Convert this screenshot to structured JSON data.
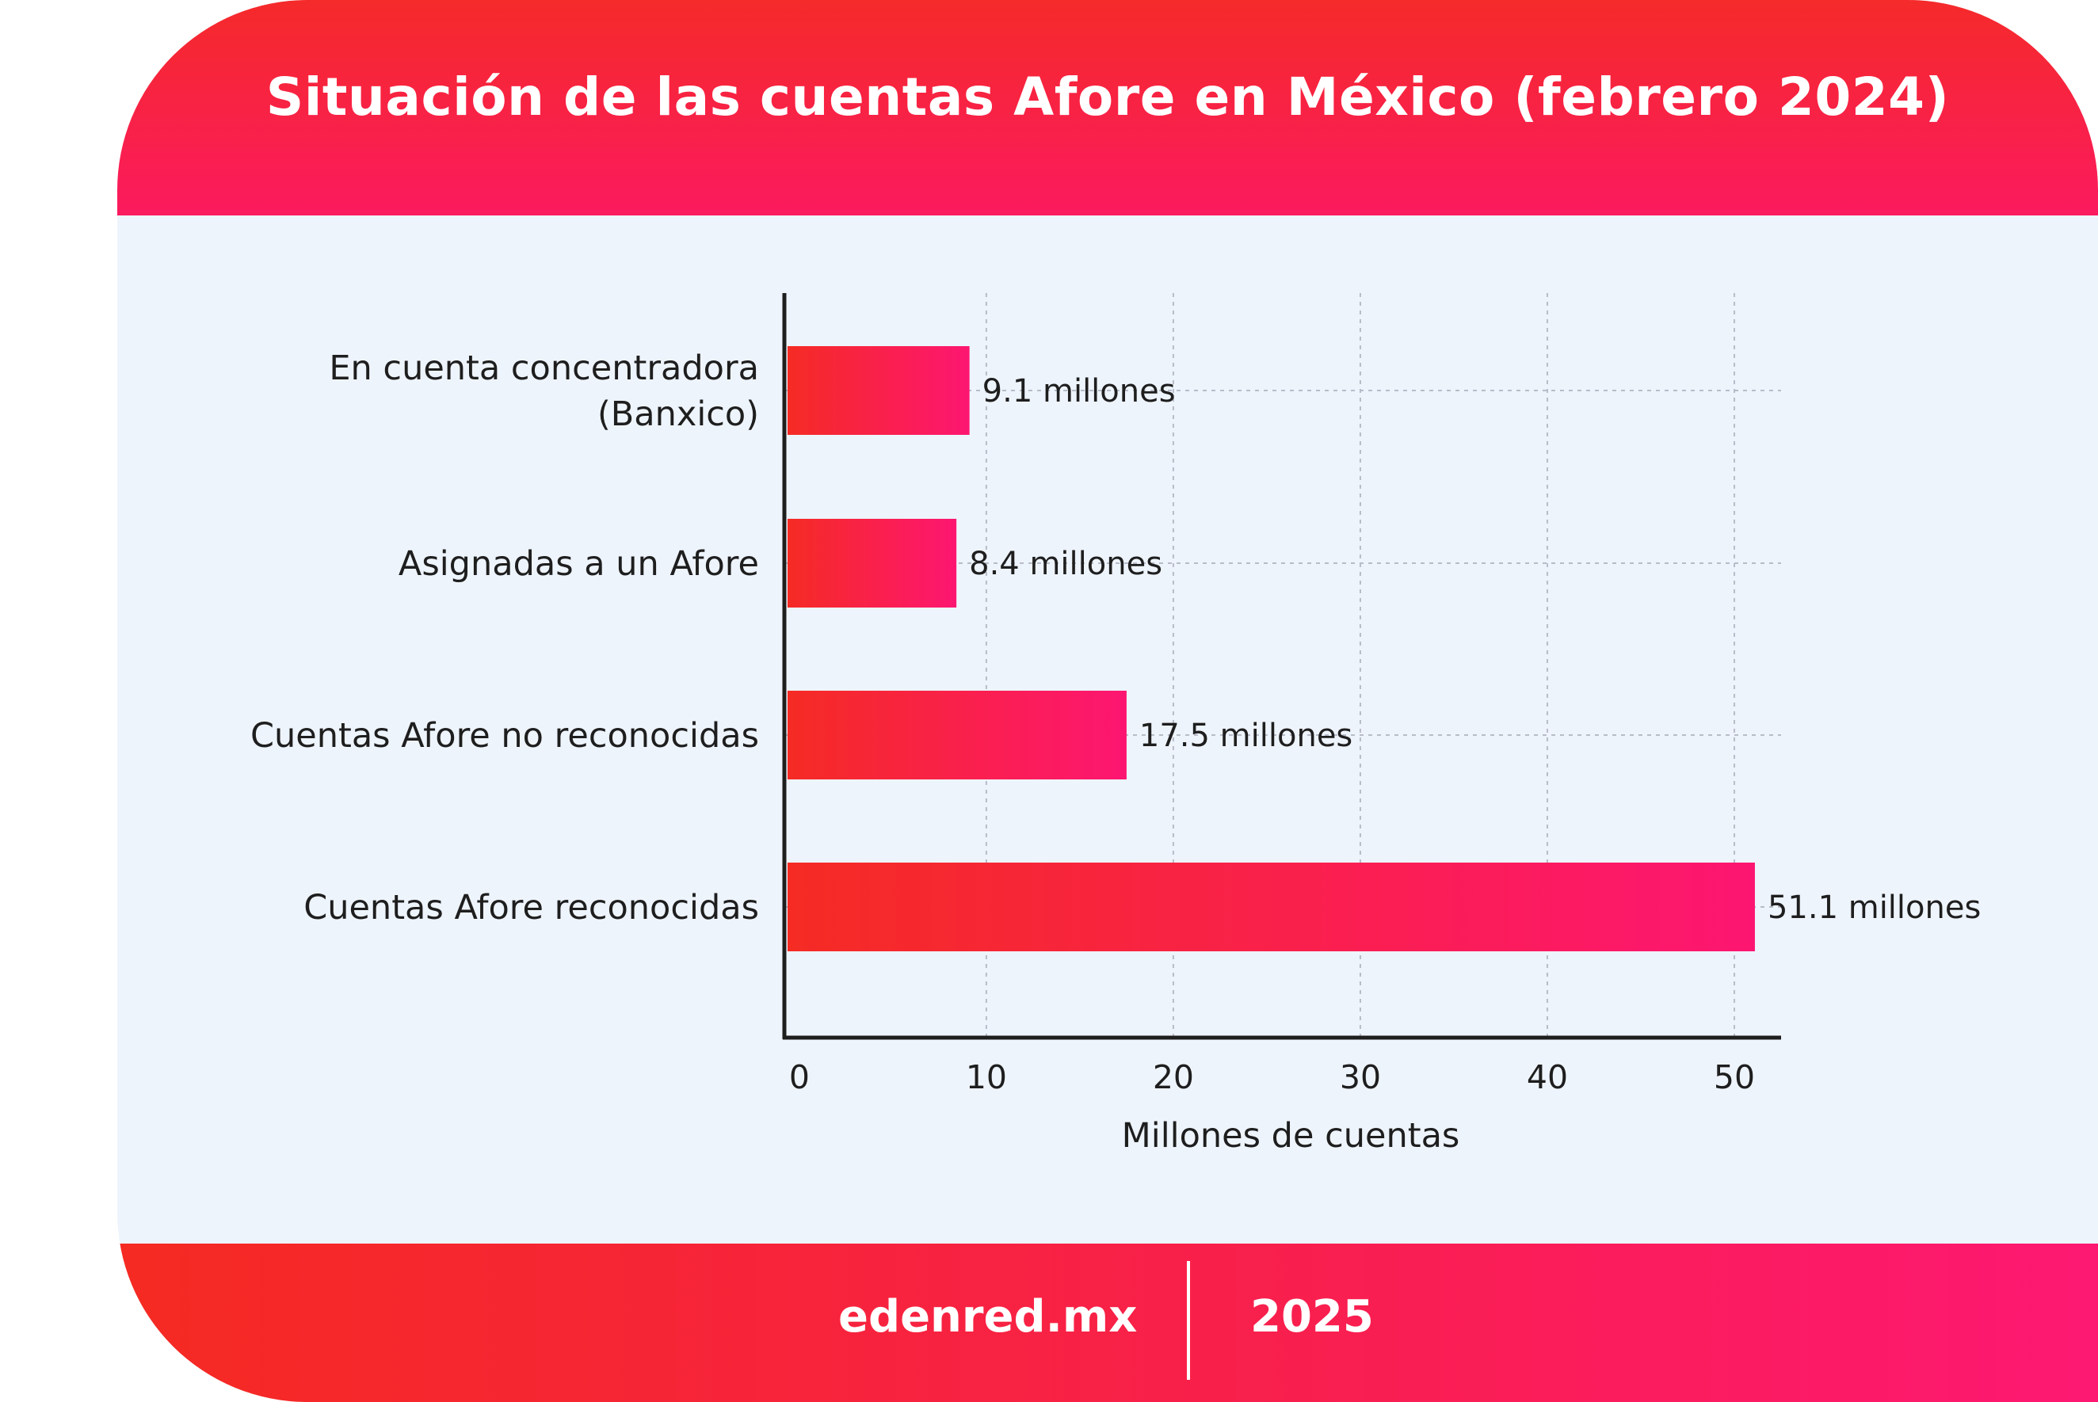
{
  "title": "Situación de las cuentas Afore en México (febrero 2024)",
  "footer": {
    "site": "edenred.mx",
    "year": "2025"
  },
  "colors": {
    "bar_start": "#f52b24",
    "bar_end": "#fd1671",
    "grid": "#b8bcc8",
    "axis": "#1e1e1e"
  },
  "chart_data": {
    "type": "bar",
    "orientation": "horizontal",
    "categories": [
      [
        "En cuenta concentradora",
        "(Banxico)"
      ],
      [
        "Asignadas a un Afore"
      ],
      [
        "Cuentas Afore no reconocidas"
      ],
      [
        "Cuentas Afore reconocidas"
      ]
    ],
    "values": [
      9.1,
      8.4,
      17.5,
      51.1
    ],
    "value_labels": [
      "9.1 millones",
      "8.4 millones",
      "17.5 millones",
      "51.1 millones"
    ],
    "xlabel": "Millones de cuentas",
    "xticks": [
      0,
      10,
      20,
      30,
      40,
      50
    ],
    "xlim": [
      -0.8,
      52.5
    ],
    "grid": true
  }
}
